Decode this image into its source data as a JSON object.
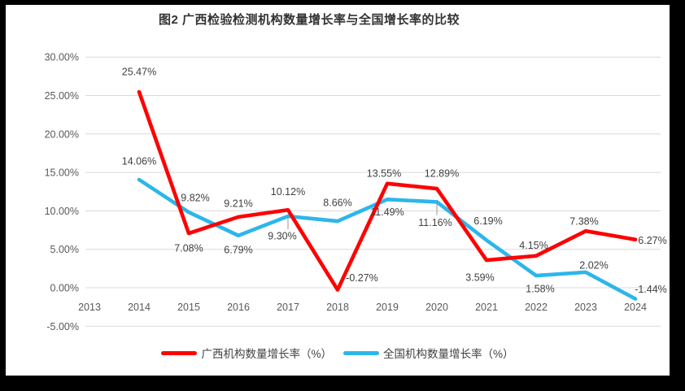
{
  "chart_data": {
    "type": "line",
    "title": "图2 广西检验检测机构数量增长率与全国增长率的比较",
    "categories": [
      "2013",
      "2014",
      "2015",
      "2016",
      "2017",
      "2018",
      "2019",
      "2020",
      "2021",
      "2022",
      "2023",
      "2024"
    ],
    "xlabel": "",
    "ylabel": "",
    "ylim": [
      -5,
      30
    ],
    "y_ticks": [
      30,
      25,
      20,
      15,
      10,
      5,
      0,
      -5
    ],
    "y_tick_labels": [
      "30.00%",
      "25.00%",
      "20.00%",
      "15.00%",
      "10.00%",
      "5.00%",
      "0.00%",
      "-5.00%"
    ],
    "grid": true,
    "legend_position": "bottom",
    "colors": {
      "grid": "#D9D9D9",
      "axis_text": "#595959",
      "data_label_text": "#404040",
      "leader": "#A6A6A6",
      "background": "#FFFFFF",
      "frame": "#000000"
    },
    "series": [
      {
        "name": "广西机构数量增长率（%）",
        "color": "#FF0000",
        "values": [
          null,
          25.47,
          7.08,
          9.21,
          10.12,
          -0.27,
          13.55,
          12.89,
          3.59,
          4.15,
          7.38,
          6.27
        ],
        "labels": [
          "",
          "25.47%",
          "7.08%",
          "9.21%",
          "10.12%",
          "-0.27%",
          "13.55%",
          "12.89%",
          "3.59%",
          "4.15%",
          "7.38%",
          "6.27%"
        ],
        "label_offsets": [
          null,
          [
            0,
            -25
          ],
          [
            0,
            18
          ],
          [
            0,
            -17
          ],
          [
            0,
            -23
          ],
          [
            30,
            -15
          ],
          [
            -4,
            -13
          ],
          [
            6,
            -19
          ],
          [
            -8,
            21
          ],
          [
            -3,
            -13
          ],
          [
            -2,
            -12
          ],
          [
            21,
            1
          ]
        ]
      },
      {
        "name": "全国机构数量增长率（%）",
        "color": "#2DB6EA",
        "values": [
          null,
          14.06,
          9.82,
          6.79,
          9.3,
          8.66,
          11.49,
          11.16,
          6.19,
          1.58,
          2.02,
          -1.44
        ],
        "labels": [
          "",
          "14.06%",
          "9.82%",
          "6.79%",
          "9.30%",
          "8.66%",
          "11.49%",
          "11.16%",
          "6.19%",
          "1.58%",
          "2.02%",
          "-1.44%"
        ],
        "label_offsets": [
          null,
          [
            0,
            -23
          ],
          [
            8,
            -18
          ],
          [
            0,
            17
          ],
          [
            -7,
            24
          ],
          [
            0,
            -23
          ],
          [
            0,
            15
          ],
          [
            -2,
            25
          ],
          [
            2,
            -24
          ],
          [
            5,
            16
          ],
          [
            10,
            -9
          ],
          [
            19,
            -12
          ]
        ]
      }
    ],
    "leader_lines": [
      {
        "series": 1,
        "index": 4,
        "len": 16
      },
      {
        "series": 1,
        "index": 7,
        "len": 16
      }
    ]
  }
}
